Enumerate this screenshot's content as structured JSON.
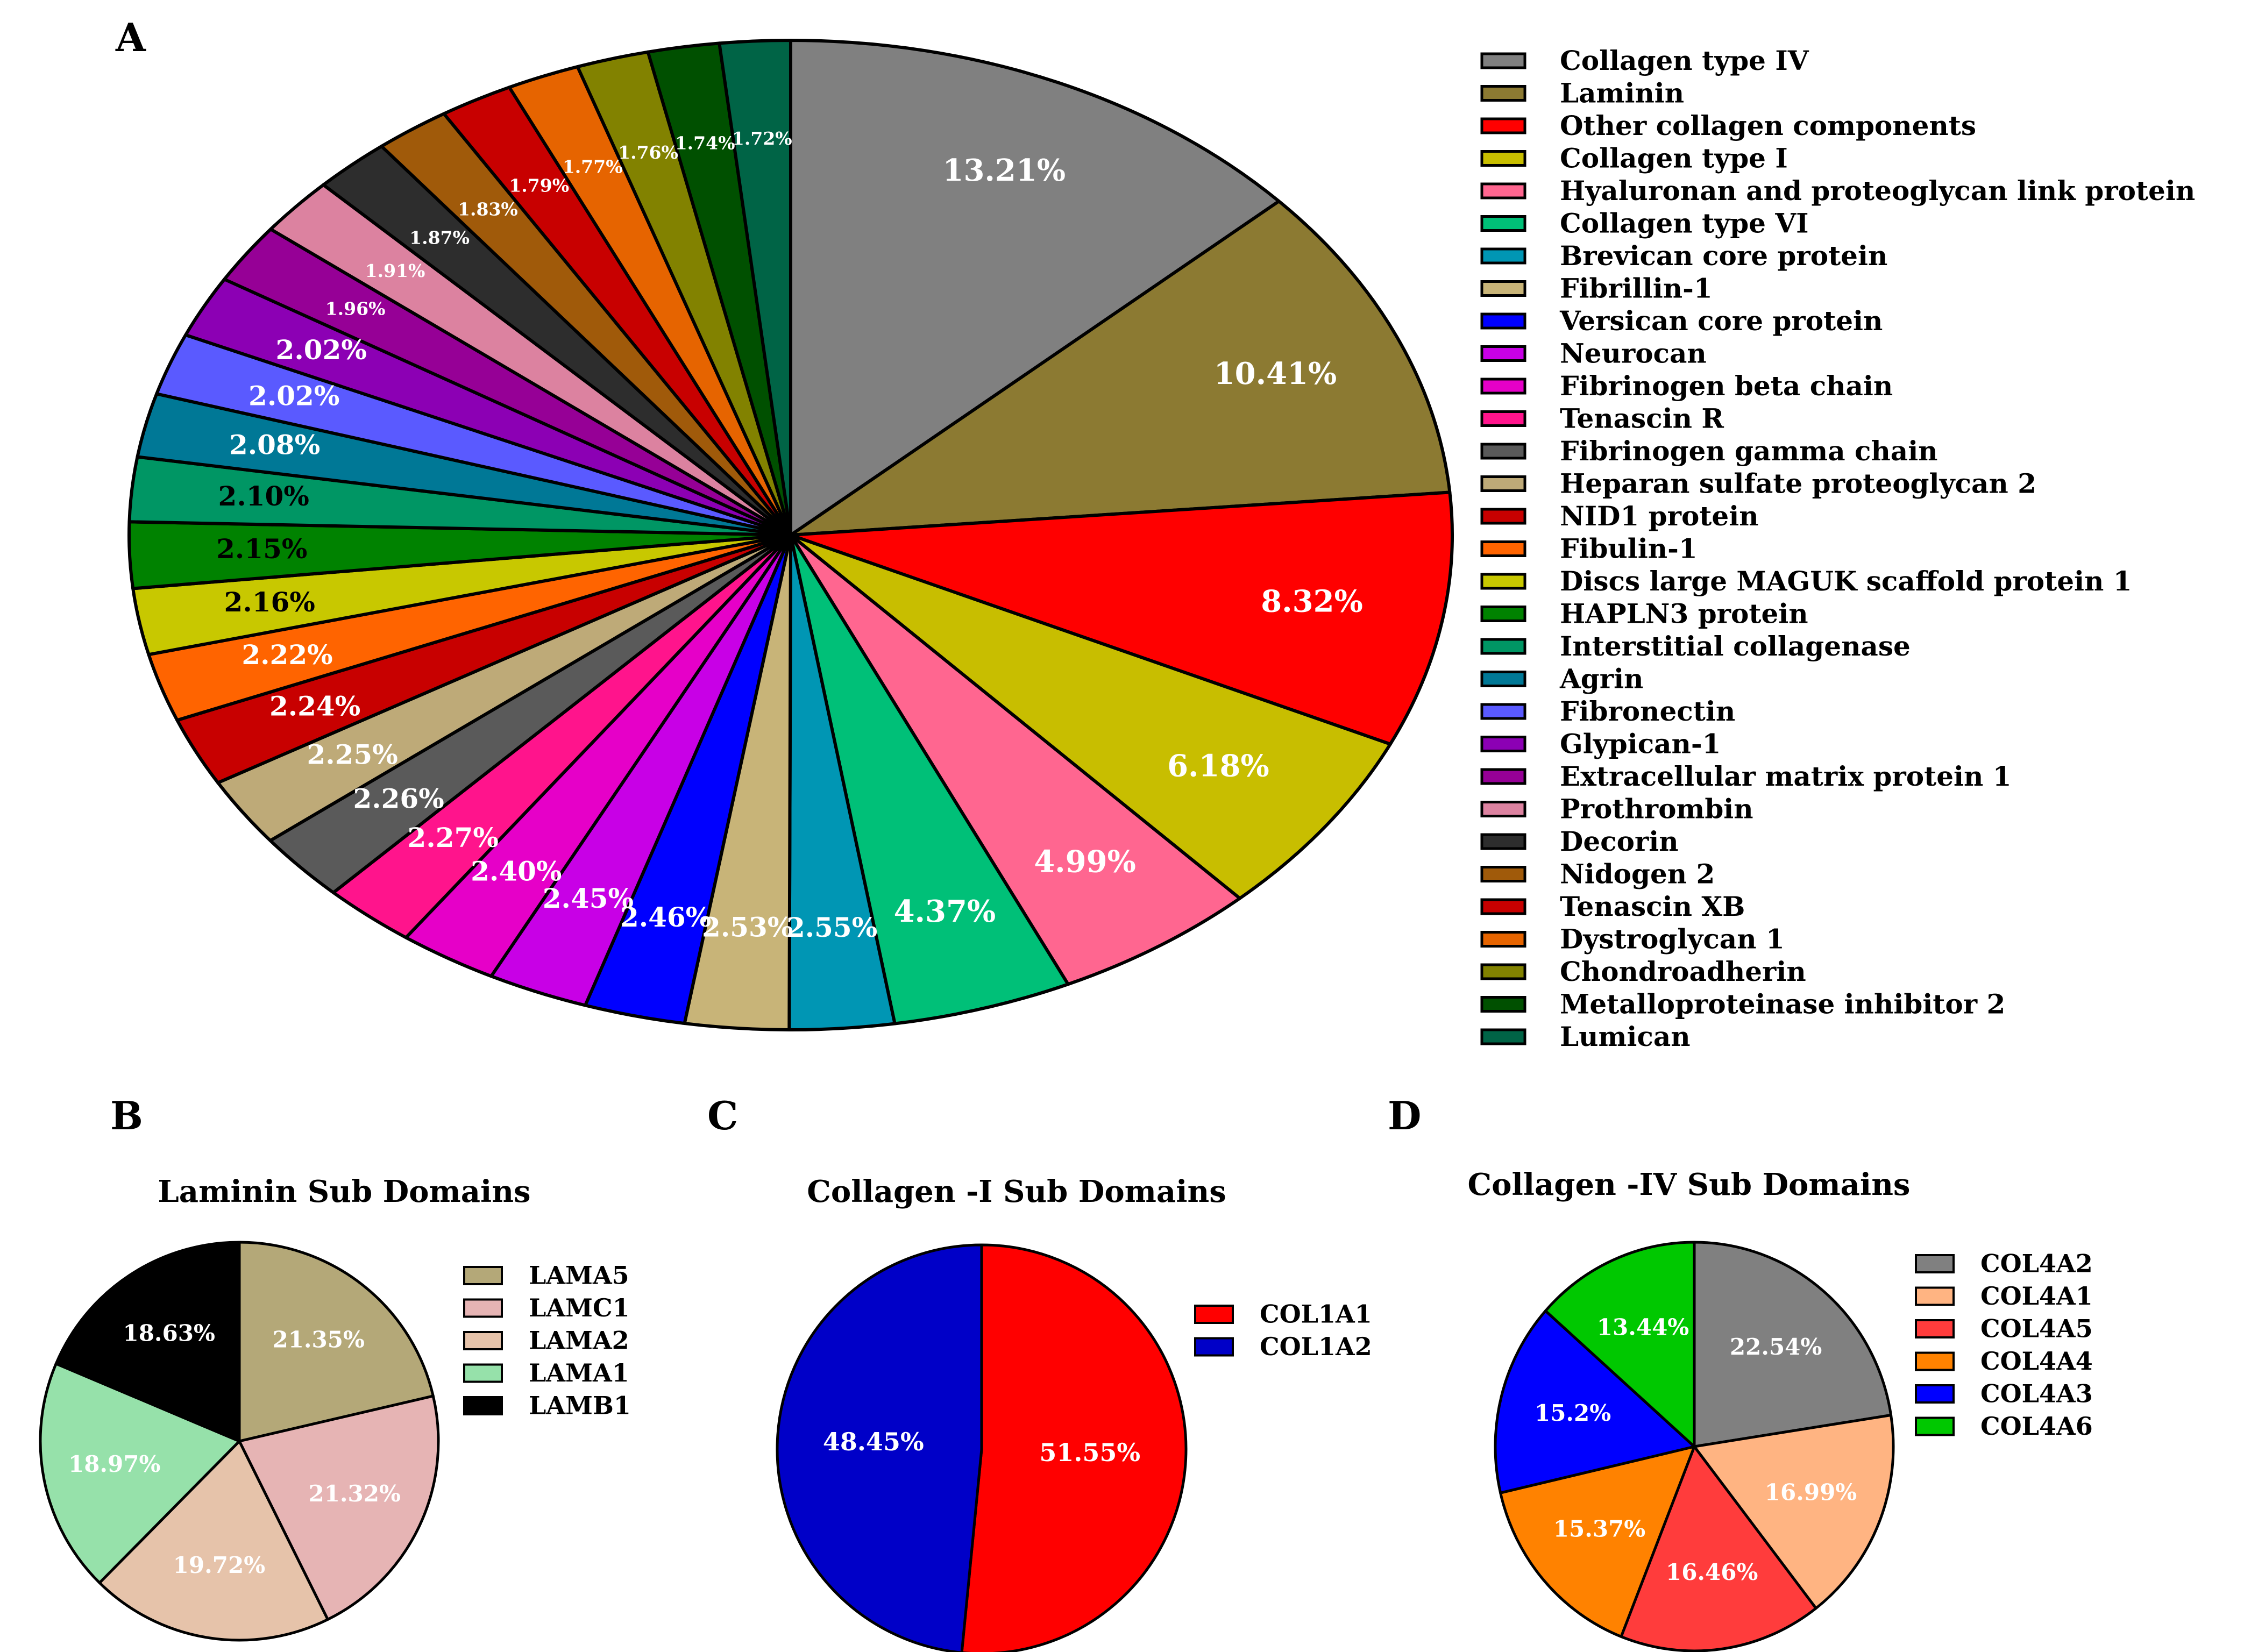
{
  "chart_data": [
    {
      "panel": "A",
      "type": "pie",
      "title": "",
      "series": [
        {
          "label": "Collagen type IV",
          "value": 13.21,
          "text": "13.21%",
          "color": "#808080"
        },
        {
          "label": "Laminin",
          "value": 10.41,
          "text": "10.41%",
          "color": "#8C7A32"
        },
        {
          "label": "Other collagen components",
          "value": 8.32,
          "text": "8.32%",
          "color": "#FF0000"
        },
        {
          "label": "Collagen type I",
          "value": 6.18,
          "text": "6.18%",
          "color": "#C8BE00"
        },
        {
          "label": "Hyaluronan and proteoglycan link protein",
          "value": 4.99,
          "text": "4.99%",
          "color": "#FF6690"
        },
        {
          "label": "Collagen type VI",
          "value": 4.37,
          "text": "4.37%",
          "color": "#00C078"
        },
        {
          "label": "Brevican core protein",
          "value": 2.55,
          "text": "2.55%",
          "color": "#0096B4"
        },
        {
          "label": "Fibrillin-1",
          "value": 2.53,
          "text": "2.53%",
          "color": "#C8B478"
        },
        {
          "label": "Versican core protein",
          "value": 2.46,
          "text": "2.46%",
          "color": "#0000FF"
        },
        {
          "label": "Neurocan",
          "value": 2.45,
          "text": "2.45%",
          "color": "#C800E6"
        },
        {
          "label": "Fibrinogen beta chain",
          "value": 2.4,
          "text": "2.40%",
          "color": "#E600C8"
        },
        {
          "label": "Tenascin R",
          "value": 2.27,
          "text": "2.27%",
          "color": "#FF148C"
        },
        {
          "label": "Fibrinogen gamma chain",
          "value": 2.26,
          "text": "2.26%",
          "color": "#5A5A5A"
        },
        {
          "label": "Heparan sulfate proteoglycan 2",
          "value": 2.25,
          "text": "2.25%",
          "color": "#BEAA78"
        },
        {
          "label": "NID1 protein",
          "value": 2.24,
          "text": "2.24%",
          "color": "#C80000"
        },
        {
          "label": "Fibulin-1",
          "value": 2.22,
          "text": "2.22%",
          "color": "#FF6400"
        },
        {
          "label": "Discs large MAGUK scaffold protein 1",
          "value": 2.16,
          "text": "2.16%",
          "color": "#C8C800"
        },
        {
          "label": "HAPLN3 protein",
          "value": 2.15,
          "text": "2.15%",
          "color": "#008200"
        },
        {
          "label": "Interstitial collagenase",
          "value": 2.1,
          "text": "2.10%",
          "color": "#009664"
        },
        {
          "label": "Agrin",
          "value": 2.08,
          "text": "2.08%",
          "color": "#007896"
        },
        {
          "label": "Fibronectin",
          "value": 2.02,
          "text": "2.02%",
          "color": "#5A5AFF"
        },
        {
          "label": "Glypican-1",
          "value": 2.02,
          "text": "2.02%",
          "color": "#8C00B4"
        },
        {
          "label": "Extracellular matrix protein 1",
          "value": 1.96,
          "text": "1.96%",
          "color": "#960096"
        },
        {
          "label": "Prothrombin",
          "value": 1.91,
          "text": "1.91%",
          "color": "#DC82A0"
        },
        {
          "label": "Decorin",
          "value": 1.87,
          "text": "1.87%",
          "color": "#2D2D2D"
        },
        {
          "label": "Nidogen 2",
          "value": 1.83,
          "text": "1.83%",
          "color": "#A05A0A"
        },
        {
          "label": "Tenascin XB",
          "value": 1.79,
          "text": "1.79%",
          "color": "#C80000"
        },
        {
          "label": "Dystroglycan 1",
          "value": 1.77,
          "text": "1.77%",
          "color": "#E66400"
        },
        {
          "label": "Chondroadherin",
          "value": 1.76,
          "text": "1.76%",
          "color": "#828200"
        },
        {
          "label": "Metalloproteinase inhibitor 2",
          "value": 1.74,
          "text": "1.74%",
          "color": "#005000"
        },
        {
          "label": "Lumican",
          "value": 1.72,
          "text": "1.72%",
          "color": "#006446"
        }
      ]
    },
    {
      "panel": "B",
      "type": "pie",
      "title": "Laminin Sub Domains",
      "series": [
        {
          "label": "LAMA5",
          "value": 21.35,
          "text": "21.35%",
          "color": "#B4A878"
        },
        {
          "label": "LAMC1",
          "value": 21.32,
          "text": "21.32%",
          "color": "#E6B4B4"
        },
        {
          "label": "LAMA2",
          "value": 19.72,
          "text": "19.72%",
          "color": "#E6C3AA"
        },
        {
          "label": "LAMA1",
          "value": 18.97,
          "text": "18.97%",
          "color": "#96E1AA"
        },
        {
          "label": "LAMB1",
          "value": 18.63,
          "text": "18.63%",
          "color": "#000000"
        }
      ]
    },
    {
      "panel": "C",
      "type": "pie",
      "title": "Collagen -I Sub Domains",
      "series": [
        {
          "label": "COL1A1",
          "value": 51.55,
          "text": "51.55%",
          "color": "#FF0000"
        },
        {
          "label": "COL1A2",
          "value": 48.45,
          "text": "48.45%",
          "color": "#0000C8"
        }
      ]
    },
    {
      "panel": "D",
      "type": "pie",
      "title": "Collagen -IV Sub Domains",
      "series": [
        {
          "label": "COL4A2",
          "value": 22.54,
          "text": "22.54%",
          "color": "#808080"
        },
        {
          "label": "COL4A1",
          "value": 16.99,
          "text": "16.99%",
          "color": "#FFB482"
        },
        {
          "label": "COL4A5",
          "value": 16.46,
          "text": "16.46%",
          "color": "#FF3C3C"
        },
        {
          "label": "COL4A4",
          "value": 15.37,
          "text": "15.37%",
          "color": "#FF8200"
        },
        {
          "label": "COL4A3",
          "value": 15.2,
          "text": "15.2%",
          "color": "#0000FF"
        },
        {
          "label": "COL4A6",
          "value": 13.44,
          "text": "13.44%",
          "color": "#00C800"
        }
      ]
    }
  ]
}
